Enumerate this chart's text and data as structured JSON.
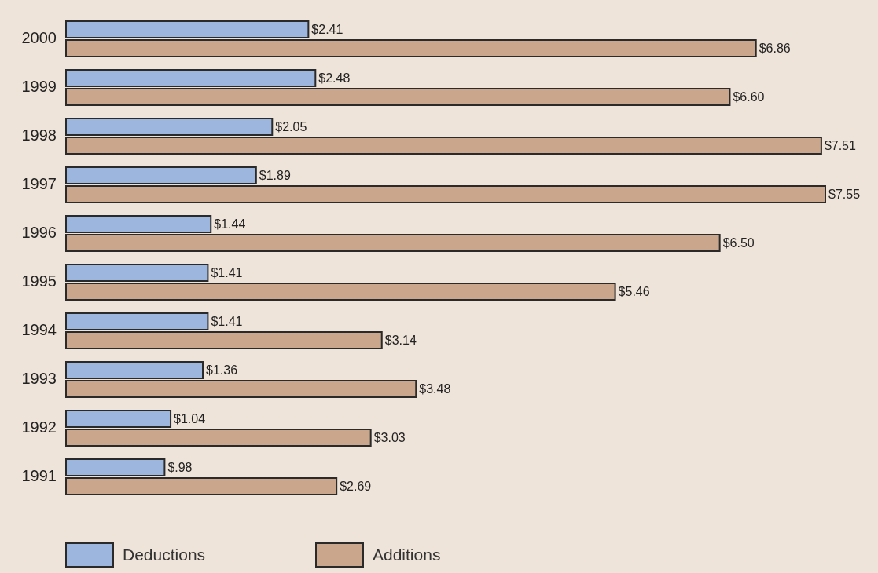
{
  "chart_data": {
    "type": "bar",
    "orientation": "horizontal",
    "categories": [
      "2000",
      "1999",
      "1998",
      "1997",
      "1996",
      "1995",
      "1994",
      "1993",
      "1992",
      "1991"
    ],
    "series": [
      {
        "name": "Deductions",
        "color": "#9db6dd",
        "values": [
          2.41,
          2.48,
          2.05,
          1.89,
          1.44,
          1.41,
          1.41,
          1.36,
          1.04,
          0.98
        ],
        "value_labels": [
          "$2.41",
          "$2.48",
          "$2.05",
          "$1.89",
          "$1.44",
          "$1.41",
          "$1.41",
          "$1.36",
          "$1.04",
          "$.98"
        ]
      },
      {
        "name": "Additions",
        "color": "#c9a68c",
        "values": [
          6.86,
          6.6,
          7.51,
          7.55,
          6.5,
          5.46,
          3.14,
          3.48,
          3.03,
          2.69
        ],
        "value_labels": [
          "$6.86",
          "$6.60",
          "$7.51",
          "$7.55",
          "$6.50",
          "$5.46",
          "$3.14",
          "$3.48",
          "$3.03",
          "$2.69"
        ]
      }
    ],
    "legend": "bottom left"
  }
}
